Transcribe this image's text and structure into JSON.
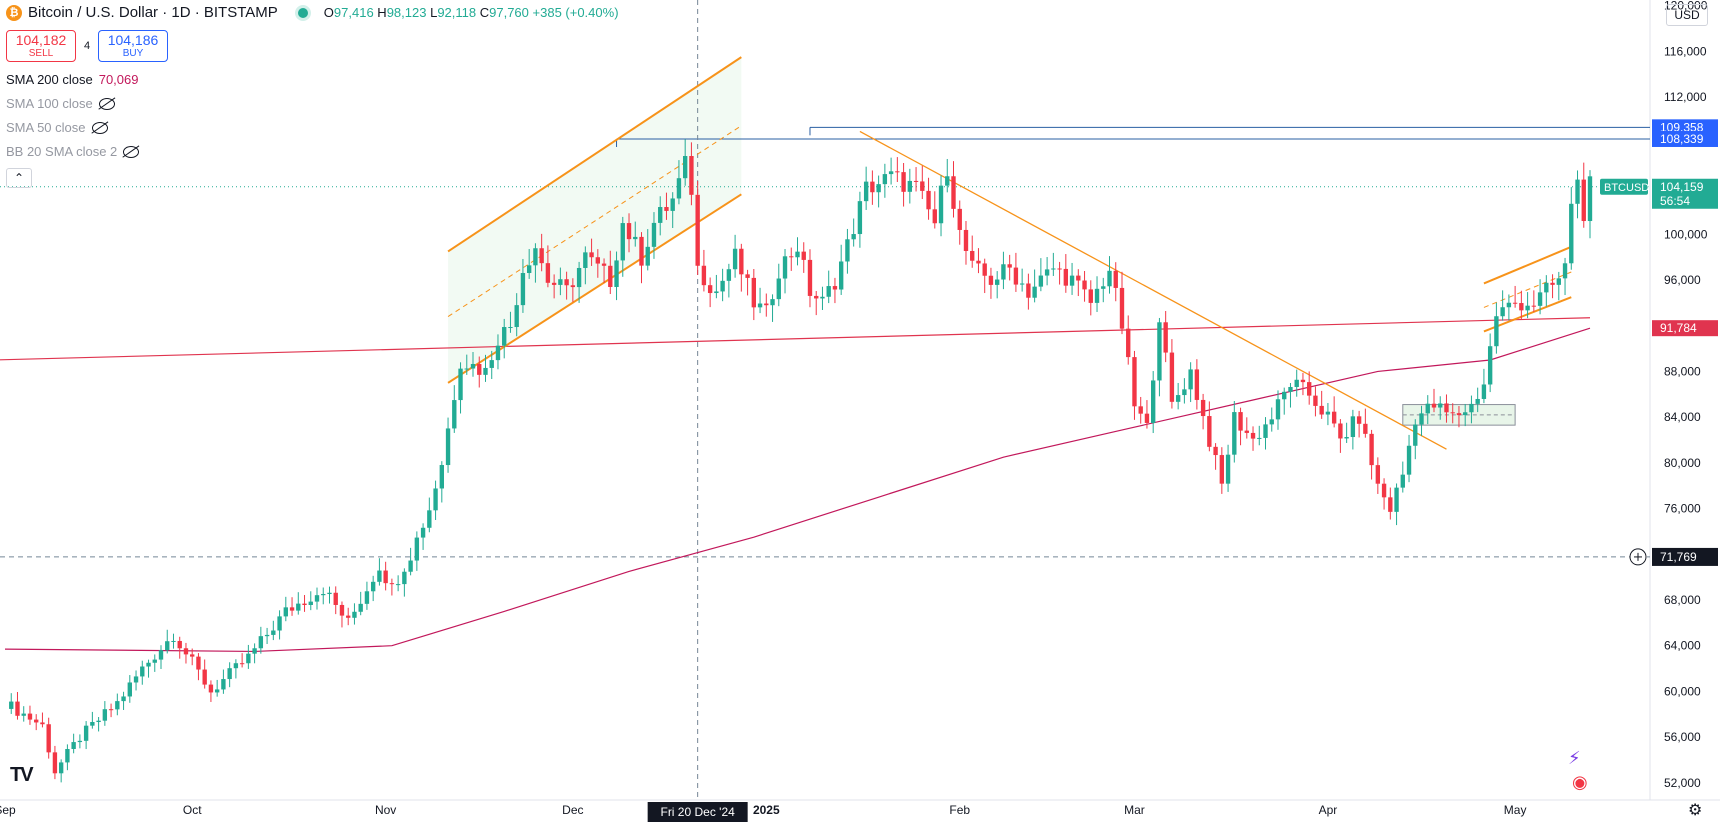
{
  "header": {
    "coin_letter": "₿",
    "symbol_title": "Bitcoin / U.S. Dollar · 1D · BITSTAMP",
    "open_label": "O",
    "open_value": "97,416",
    "high_label": "H",
    "high_value": "98,123",
    "low_label": "L",
    "low_value": "92,118",
    "close_label": "C",
    "close_value": "97,760",
    "change": "+385 (+0.40%)"
  },
  "trade": {
    "sell_price": "104,182",
    "sell_label": "SELL",
    "spread": "4",
    "buy_price": "104,186",
    "buy_label": "BUY"
  },
  "indicators": [
    {
      "name": "SMA 200 close",
      "value": "70,069"
    },
    {
      "name": "SMA 100 close"
    },
    {
      "name": "SMA 50 close"
    },
    {
      "name": "BB 20 SMA close 2"
    }
  ],
  "currency": "USD",
  "colors": {
    "up": "#22ab94",
    "down": "#f23645",
    "channel": "#f7931a",
    "sma200": "#c2185b",
    "ma_red": "#e0344f",
    "level_line": "#2a5fa3"
  },
  "chart_data": {
    "type": "candlestick",
    "title": "Bitcoin / U.S. Dollar · 1D · BITSTAMP",
    "symbol": "BTCUSD",
    "y_ticks": [
      120000,
      116000,
      112000,
      100000,
      96000,
      88000,
      84000,
      80000,
      76000,
      68000,
      64000,
      60000,
      56000,
      52000
    ],
    "y_tick_labels": [
      "120,000",
      "116,000",
      "112,000",
      "100,000",
      "96,000",
      "88,000",
      "84,000",
      "80,000",
      "76,000",
      "68,000",
      "64,000",
      "60,000",
      "56,000",
      "52,000"
    ],
    "ylim": [
      50500,
      120500
    ],
    "x_labels": [
      {
        "label": "Sep",
        "day": 0
      },
      {
        "label": "Oct",
        "day": 30
      },
      {
        "label": "Nov",
        "day": 61
      },
      {
        "label": "Dec",
        "day": 91
      },
      {
        "label": "2025",
        "day": 122
      },
      {
        "label": "Feb",
        "day": 153
      },
      {
        "label": "Mar",
        "day": 181
      },
      {
        "label": "Apr",
        "day": 212
      },
      {
        "label": "May",
        "day": 242
      }
    ],
    "x_range": [
      0,
      254
    ],
    "crosshair": {
      "label": "Fri 20 Dec '24",
      "day": 111,
      "price": 71769,
      "price_label": "71,769"
    },
    "price_badges": [
      {
        "label": "109,358",
        "value": 109358,
        "color": "#2962ff"
      },
      {
        "label": "108,339",
        "value": 108339,
        "color": "#2962ff"
      },
      {
        "label": "91,784",
        "value": 91784,
        "color": "#e0344f"
      }
    ],
    "last_price": {
      "symbol": "BTCUSD",
      "value": 104159,
      "label": "104,159",
      "countdown": "56:54"
    },
    "anchors": [
      [
        0,
        59000
      ],
      [
        6,
        57000
      ],
      [
        8,
        53000
      ],
      [
        12,
        56000
      ],
      [
        18,
        59000
      ],
      [
        22,
        62000
      ],
      [
        27,
        65000
      ],
      [
        33,
        60000
      ],
      [
        39,
        63000
      ],
      [
        45,
        67000
      ],
      [
        51,
        69000
      ],
      [
        55,
        66000
      ],
      [
        60,
        71000
      ],
      [
        62,
        69000
      ],
      [
        65,
        72000
      ],
      [
        68,
        76000
      ],
      [
        70,
        80000
      ],
      [
        73,
        89000
      ],
      [
        77,
        88000
      ],
      [
        79,
        91000
      ],
      [
        81,
        92000
      ],
      [
        83,
        97000
      ],
      [
        85,
        99000
      ],
      [
        87,
        96000
      ],
      [
        90,
        95000
      ],
      [
        93,
        98000
      ],
      [
        97,
        96000
      ],
      [
        99,
        101000
      ],
      [
        102,
        98000
      ],
      [
        104,
        101000
      ],
      [
        107,
        103000
      ],
      [
        109,
        106000
      ],
      [
        110,
        104000
      ],
      [
        111,
        97000
      ],
      [
        114,
        95000
      ],
      [
        117,
        98000
      ],
      [
        120,
        94000
      ],
      [
        122,
        93000
      ],
      [
        124,
        97000
      ],
      [
        127,
        99000
      ],
      [
        129,
        95000
      ],
      [
        131,
        94000
      ],
      [
        133,
        96000
      ],
      [
        135,
        99000
      ],
      [
        138,
        104000
      ],
      [
        142,
        105000
      ],
      [
        146,
        104000
      ],
      [
        149,
        101000
      ],
      [
        151,
        106000
      ],
      [
        153,
        100000
      ],
      [
        155,
        97000
      ],
      [
        158,
        96000
      ],
      [
        161,
        97000
      ],
      [
        164,
        95000
      ],
      [
        168,
        97000
      ],
      [
        171,
        96000
      ],
      [
        174,
        94000
      ],
      [
        177,
        97000
      ],
      [
        179,
        92000
      ],
      [
        181,
        85000
      ],
      [
        183,
        83000
      ],
      [
        185,
        93000
      ],
      [
        187,
        85000
      ],
      [
        190,
        88000
      ],
      [
        193,
        82000
      ],
      [
        195,
        78000
      ],
      [
        197,
        84000
      ],
      [
        200,
        82000
      ],
      [
        203,
        84000
      ],
      [
        206,
        87000
      ],
      [
        209,
        86000
      ],
      [
        212,
        84000
      ],
      [
        214,
        82000
      ],
      [
        217,
        84000
      ],
      [
        220,
        78000
      ],
      [
        222,
        76000
      ],
      [
        224,
        79000
      ],
      [
        226,
        84000
      ],
      [
        229,
        85000
      ],
      [
        232,
        84000
      ],
      [
        235,
        85000
      ],
      [
        237,
        87000
      ],
      [
        239,
        93000
      ],
      [
        242,
        94000
      ],
      [
        245,
        94000
      ],
      [
        247,
        95000
      ],
      [
        249,
        96000
      ],
      [
        250,
        97000
      ],
      [
        251,
        103000
      ],
      [
        252,
        104500
      ],
      [
        253,
        102000
      ],
      [
        254,
        104159
      ]
    ],
    "sma200_points": [
      [
        0,
        63700
      ],
      [
        40,
        63500
      ],
      [
        62,
        64000
      ],
      [
        80,
        67000
      ],
      [
        100,
        70500
      ],
      [
        120,
        73500
      ],
      [
        140,
        77000
      ],
      [
        160,
        80500
      ],
      [
        180,
        83000
      ],
      [
        200,
        85500
      ],
      [
        220,
        88000
      ],
      [
        238,
        89000
      ],
      [
        254,
        91784
      ]
    ],
    "ma_red_points": [
      [
        -2,
        89000
      ],
      [
        254,
        92700
      ]
    ],
    "channels": [
      {
        "upper": [
          [
            71,
            98500
          ],
          [
            118,
            115500
          ]
        ],
        "lower": [
          [
            71,
            87000
          ],
          [
            118,
            103500
          ]
        ],
        "mid": [
          [
            71,
            92800
          ],
          [
            118,
            109500
          ]
        ]
      },
      {
        "upper": [
          [
            237,
            95700
          ],
          [
            251,
            98900
          ]
        ],
        "lower": [
          [
            237,
            91500
          ],
          [
            251,
            94500
          ]
        ],
        "mid": [
          [
            237,
            93600
          ],
          [
            251,
            96700
          ]
        ]
      }
    ],
    "downtrend": [
      [
        137,
        109000
      ],
      [
        231,
        81200
      ]
    ],
    "levels": [
      {
        "from_day": 98,
        "value": 108339
      },
      {
        "from_day": 129,
        "value": 109358
      }
    ],
    "zone": {
      "from_day": 224,
      "to_day": 242,
      "top": 85100,
      "bottom": 83300,
      "mid": 84200
    }
  }
}
